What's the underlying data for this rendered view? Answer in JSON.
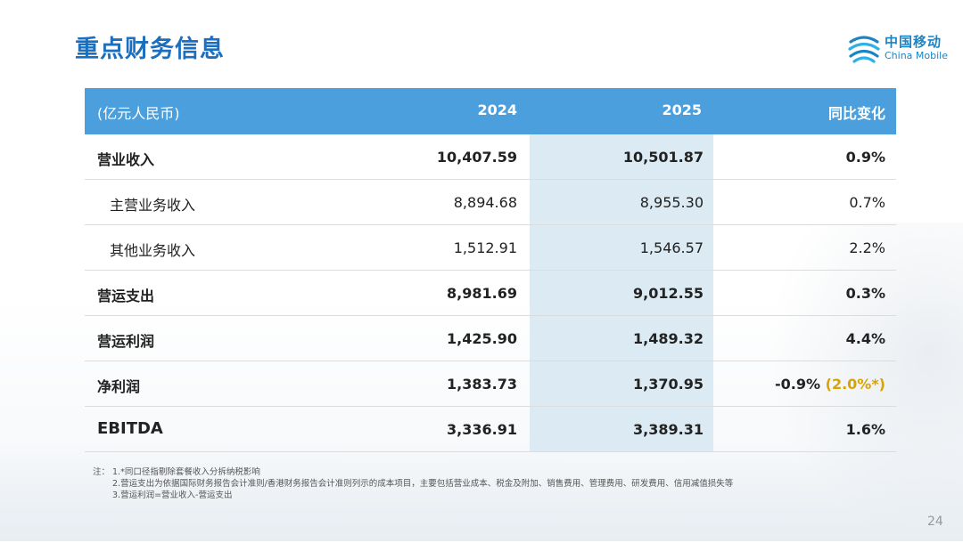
{
  "title": "重点财务信息",
  "logo": {
    "cn": "中国移动",
    "en": "China Mobile",
    "color": "#1a84c7"
  },
  "table": {
    "headers": [
      "(亿元人民币)",
      "2024",
      "2025",
      "同比变化"
    ],
    "header_bg": "#4a9fdc",
    "highlight_col_bg": "#dbeaf3",
    "rows": [
      {
        "label": "营业收入",
        "v2024": "10,407.59",
        "v2025": "10,501.87",
        "change": "0.9%",
        "change_note": ""
      },
      {
        "label": "主营业务收入",
        "v2024": "8,894.68",
        "v2025": "8,955.30",
        "change": "0.7%",
        "change_note": ""
      },
      {
        "label": "其他业务收入",
        "v2024": "1,512.91",
        "v2025": "1,546.57",
        "change": "2.2%",
        "change_note": ""
      },
      {
        "label": "营运支出",
        "v2024": "8,981.69",
        "v2025": "9,012.55",
        "change": "0.3%",
        "change_note": ""
      },
      {
        "label": "营运利润",
        "v2024": "1,425.90",
        "v2025": "1,489.32",
        "change": "4.4%",
        "change_note": ""
      },
      {
        "label": "净利润",
        "v2024": "1,383.73",
        "v2025": "1,370.95",
        "change": "-0.9%",
        "change_note": "(2.0%*)"
      },
      {
        "label": "EBITDA",
        "v2024": "3,336.91",
        "v2025": "3,389.31",
        "change": "1.6%",
        "change_note": ""
      }
    ]
  },
  "notes": {
    "prefix": "注：",
    "items": [
      "1.*同口径指剔除套餐收入分拆纳税影响",
      "2.营运支出为依据国际财务报告会计准则/香港财务报告会计准则列示的成本项目，主要包括营业成本、税金及附加、销售费用、管理费用、研发费用、信用减值损失等",
      "3.营运利润=营业收入-营运支出"
    ]
  },
  "page_number": "24"
}
